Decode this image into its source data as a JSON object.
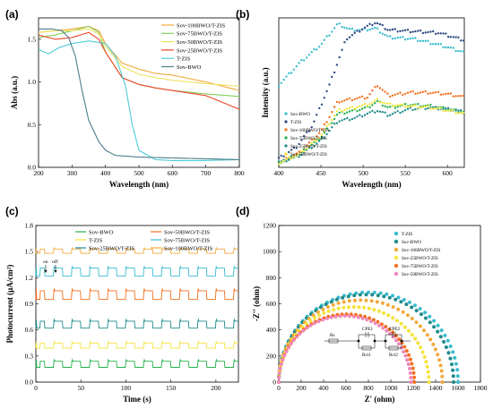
{
  "colors": {
    "sov100": "#f2a93b",
    "sov75": "#7fcf58",
    "sov50": "#f0e060",
    "sov25": "#f0442a",
    "tzis": "#4dcbd6",
    "sovbwo": "#4d7f8a",
    "navy": "#2e4a80",
    "green": "#22b04a",
    "teal": "#1f8a8a",
    "cyan": "#39bccd",
    "orange": "#f4701f",
    "pink": "#ee88bb",
    "yellow": "#f4e43a"
  },
  "panels": {
    "a": "(a)",
    "b": "(b)",
    "c": "(c)",
    "d": "(d)"
  },
  "annotations": {
    "on": "on",
    "off": "off",
    "circuit": [
      "Rs",
      "CPE1",
      "CPE2",
      "Rct1",
      "Rct2"
    ]
  },
  "chart_data": [
    {
      "id": "a",
      "type": "line",
      "xlabel": "Wavelength (nm)",
      "ylabel": "Abs (a.u.)",
      "xlim": [
        200,
        800
      ],
      "ylim": [
        0,
        1.75
      ],
      "xticks": [
        200,
        300,
        400,
        500,
        600,
        700,
        800
      ],
      "yticks": [
        0.0,
        0.5,
        1.0,
        1.5
      ],
      "grid": false,
      "legend_position": "top-right",
      "series": [
        {
          "name": "Sov-100BWO/T-ZIS",
          "color": "#f2a93b",
          "x": [
            200,
            250,
            300,
            350,
            380,
            400,
            450,
            500,
            550,
            600,
            700,
            800
          ],
          "y": [
            1.58,
            1.6,
            1.62,
            1.65,
            1.6,
            1.45,
            1.22,
            1.15,
            1.1,
            1.08,
            1.0,
            0.9
          ]
        },
        {
          "name": "Sov-75BWO/T-ZIS",
          "color": "#7fcf58",
          "x": [
            200,
            250,
            300,
            350,
            380,
            400,
            450,
            500,
            550,
            600,
            700,
            800
          ],
          "y": [
            1.52,
            1.55,
            1.6,
            1.65,
            1.58,
            1.35,
            1.05,
            0.97,
            0.93,
            0.9,
            0.86,
            0.83
          ]
        },
        {
          "name": "Sov-50BWO/T-ZIS",
          "color": "#f0e060",
          "x": [
            200,
            250,
            300,
            350,
            380,
            400,
            450,
            500,
            550,
            600,
            700,
            800
          ],
          "y": [
            1.58,
            1.6,
            1.6,
            1.62,
            1.56,
            1.42,
            1.18,
            1.09,
            1.05,
            1.02,
            0.98,
            0.95
          ]
        },
        {
          "name": "Sov-25BWO/T-ZIS",
          "color": "#f0442a",
          "x": [
            200,
            250,
            300,
            350,
            380,
            400,
            450,
            500,
            550,
            600,
            700,
            800
          ],
          "y": [
            1.55,
            1.5,
            1.52,
            1.58,
            1.5,
            1.35,
            1.05,
            0.97,
            0.93,
            0.9,
            0.84,
            0.68
          ]
        },
        {
          "name": "T-ZIS",
          "color": "#4dcbd6",
          "x": [
            200,
            230,
            260,
            300,
            350,
            400,
            430,
            460,
            480,
            500,
            550,
            600,
            700,
            800
          ],
          "y": [
            1.38,
            1.33,
            1.4,
            1.45,
            1.48,
            1.45,
            1.3,
            0.95,
            0.5,
            0.2,
            0.09,
            0.08,
            0.08,
            0.09
          ]
        },
        {
          "name": "Sov-BWO",
          "color": "#4d7f8a",
          "x": [
            200,
            240,
            270,
            290,
            310,
            330,
            350,
            380,
            400,
            430,
            500,
            600,
            700,
            800
          ],
          "y": [
            1.62,
            1.62,
            1.6,
            1.52,
            1.3,
            0.9,
            0.55,
            0.3,
            0.2,
            0.14,
            0.12,
            0.11,
            0.1,
            0.09
          ]
        }
      ]
    },
    {
      "id": "b",
      "type": "scatter",
      "xlabel": "Wavelength (nm)",
      "ylabel": "Intensity (a.u.)",
      "xlim": [
        400,
        620
      ],
      "ylim": [
        0,
        1
      ],
      "xticks": [
        400,
        450,
        500,
        550,
        600
      ],
      "yticks": [],
      "grid": false,
      "legend_position": "bottom-left",
      "series": [
        {
          "name": "Sov-BWO",
          "color": "#39bccd",
          "x": [
            400,
            425,
            450,
            470,
            485,
            500,
            515,
            530,
            560,
            590,
            620
          ],
          "y": [
            0.55,
            0.7,
            0.82,
            0.96,
            0.92,
            0.92,
            0.93,
            0.87,
            0.86,
            0.82,
            0.77
          ]
        },
        {
          "name": "T-ZIS",
          "color": "#2e4a80",
          "x": [
            400,
            420,
            440,
            460,
            480,
            500,
            515,
            530,
            560,
            590,
            620
          ],
          "y": [
            0.06,
            0.13,
            0.28,
            0.55,
            0.86,
            0.93,
            0.97,
            0.92,
            0.91,
            0.9,
            0.85
          ]
        },
        {
          "name": "Sov-100BWO/T-ZIS",
          "color": "#f4701f",
          "x": [
            400,
            425,
            450,
            470,
            490,
            505,
            517,
            530,
            555,
            580,
            600,
            620
          ],
          "y": [
            0.03,
            0.1,
            0.24,
            0.44,
            0.46,
            0.47,
            0.55,
            0.48,
            0.5,
            0.5,
            0.49,
            0.47
          ]
        },
        {
          "name": "Sov-75BWO/T-ZIS",
          "color": "#22b04a",
          "x": [
            400,
            425,
            450,
            470,
            490,
            505,
            517,
            530,
            555,
            580,
            600,
            620
          ],
          "y": [
            0.03,
            0.09,
            0.2,
            0.36,
            0.38,
            0.4,
            0.44,
            0.4,
            0.42,
            0.41,
            0.39,
            0.37
          ]
        },
        {
          "name": "Sov-25BWO/T-ZIS",
          "color": "#1f8a8a",
          "x": [
            400,
            425,
            450,
            470,
            490,
            505,
            517,
            530,
            555,
            580,
            600,
            620
          ],
          "y": [
            0.03,
            0.08,
            0.18,
            0.31,
            0.33,
            0.36,
            0.38,
            0.35,
            0.39,
            0.4,
            0.39,
            0.37
          ]
        },
        {
          "name": "Sov-50BWO/T-ZIS",
          "color": "#f4e43a",
          "x": [
            400,
            425,
            450,
            470,
            490,
            505,
            517,
            530,
            555,
            580,
            600,
            620
          ],
          "y": [
            0.03,
            0.09,
            0.21,
            0.38,
            0.4,
            0.42,
            0.45,
            0.42,
            0.41,
            0.4,
            0.38,
            0.36
          ]
        }
      ]
    },
    {
      "id": "c",
      "type": "line",
      "xlabel": "Time (s)",
      "ylabel": "Photocurrent (μA/cm²)",
      "xlim": [
        0,
        225
      ],
      "ylim": [
        0,
        1.8
      ],
      "xticks": [
        0,
        50,
        100,
        150,
        200
      ],
      "yticks": [
        0.0,
        0.3,
        0.6,
        0.9,
        1.2,
        1.5,
        1.8
      ],
      "grid": false,
      "legend_position": "top",
      "period_s": 20,
      "series": [
        {
          "name": "Sov-BWO",
          "color": "#22b04a",
          "low": 0.17,
          "high": 0.24
        },
        {
          "name": "Sov-50BWO/T-ZIS",
          "color": "#f4701f",
          "low": 0.95,
          "high": 1.05
        },
        {
          "name": "T-ZIS",
          "color": "#f4e43a",
          "low": 0.39,
          "high": 0.45
        },
        {
          "name": "Sov-75BWO/T-ZIS",
          "color": "#39bccd",
          "low": 1.22,
          "high": 1.31
        },
        {
          "name": "Sov-25BWO/T-ZIS",
          "color": "#1f8a8a",
          "low": 0.62,
          "high": 0.7
        },
        {
          "name": "Sov-100BWO/T-ZIS",
          "color": "#f2a93b",
          "low": 1.48,
          "high": 1.53
        }
      ]
    },
    {
      "id": "d",
      "type": "scatter",
      "xlabel": "Z' (ohm)",
      "ylabel": "-Z'' (ohm)",
      "xlim": [
        0,
        1800
      ],
      "ylim": [
        0,
        1200
      ],
      "xticks": [
        0,
        200,
        400,
        600,
        800,
        1000,
        1200,
        1400,
        1600,
        1800
      ],
      "yticks": [
        0,
        200,
        400,
        600,
        800,
        1000,
        1200
      ],
      "grid": false,
      "legend_position": "top-right",
      "series": [
        {
          "name": "T-ZIS",
          "color": "#39bccd",
          "zmax": 1600
        },
        {
          "name": "Sov-BWO",
          "color": "#1f8a8a",
          "zmax": 1560
        },
        {
          "name": "Sov-100BWO/T-ZIS",
          "color": "#f2a93b",
          "zmax": 1460
        },
        {
          "name": "Sov-25BWO/T-ZIS",
          "color": "#f4e43a",
          "zmax": 1340
        },
        {
          "name": "Sov-75BWO/T-ZIS",
          "color": "#f4701f",
          "zmax": 1210
        },
        {
          "name": "Sov-50BWO/T-ZIS",
          "color": "#ee88bb",
          "zmax": 1180
        }
      ]
    }
  ]
}
